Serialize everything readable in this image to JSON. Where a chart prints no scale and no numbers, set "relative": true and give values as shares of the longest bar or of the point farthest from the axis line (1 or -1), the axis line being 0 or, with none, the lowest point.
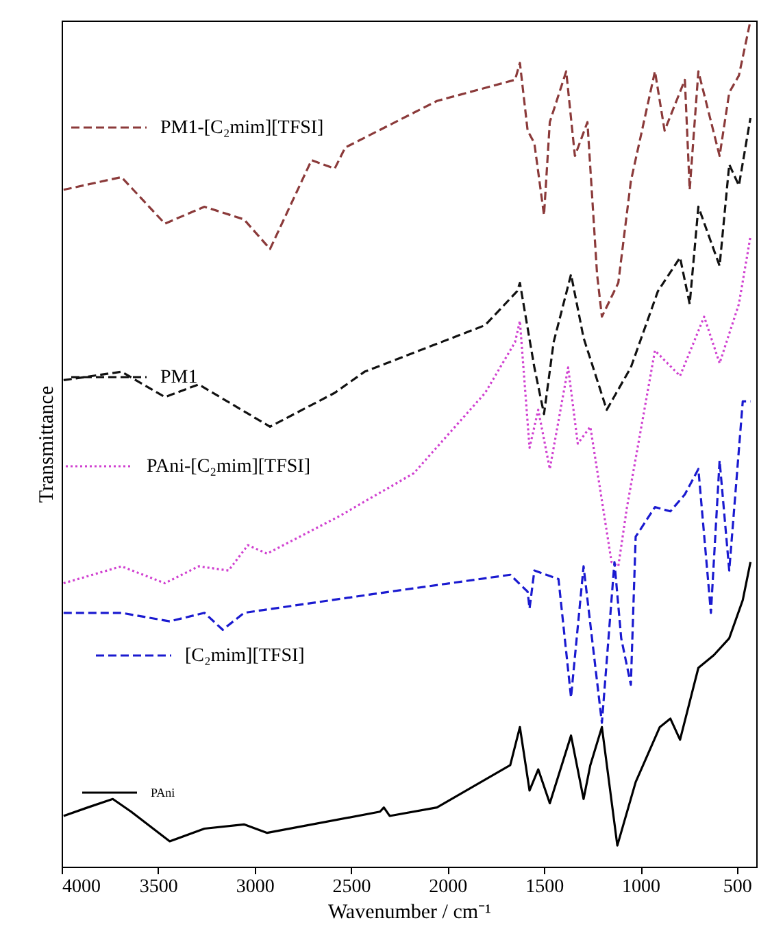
{
  "chart_data": {
    "type": "line",
    "relative": true,
    "xlabel": "Wavenumber / cm⁻¹",
    "ylabel": "Transmittance",
    "xlim": [
      4000,
      400
    ],
    "xticks": [
      4000,
      3500,
      3000,
      2500,
      2000,
      1500,
      1000,
      500
    ],
    "tick_labels": "x",
    "grid": false,
    "marker": "none",
    "legend": "left",
    "series": [
      {
        "name": "PM1-[C₂mim][TFSI]",
        "color": "#8b3a3a",
        "line_style": "dashed",
        "x": [
          3990,
          3690,
          3465,
          3260,
          3055,
          2920,
          2705,
          2585,
          2530,
          2055,
          1650,
          1625,
          1585,
          1550,
          1500,
          1470,
          1385,
          1340,
          1275,
          1225,
          1200,
          1115,
          1050,
          925,
          875,
          770,
          745,
          700,
          590,
          540,
          490,
          430
        ],
        "values": [
          0.8,
          0.815,
          0.76,
          0.78,
          0.765,
          0.73,
          0.835,
          0.825,
          0.85,
          0.905,
          0.93,
          0.95,
          0.87,
          0.855,
          0.77,
          0.88,
          0.94,
          0.84,
          0.88,
          0.7,
          0.65,
          0.69,
          0.81,
          0.94,
          0.87,
          0.93,
          0.8,
          0.94,
          0.84,
          0.915,
          0.935,
          1.0
        ]
      },
      {
        "name": "PM1",
        "color": "#111111",
        "line_style": "dashed",
        "x": [
          3990,
          3690,
          3465,
          3290,
          2920,
          2585,
          2430,
          1805,
          1640,
          1625,
          1550,
          1500,
          1450,
          1360,
          1295,
          1175,
          1050,
          910,
          795,
          745,
          700,
          590,
          540,
          490,
          430
        ],
        "values": [
          0.575,
          0.585,
          0.555,
          0.57,
          0.52,
          0.56,
          0.585,
          0.64,
          0.68,
          0.69,
          0.59,
          0.535,
          0.62,
          0.7,
          0.625,
          0.54,
          0.59,
          0.68,
          0.72,
          0.665,
          0.78,
          0.71,
          0.83,
          0.805,
          0.885
        ]
      },
      {
        "name": "PAni-[C₂mim][TFSI]",
        "color": "#d040d0",
        "line_style": "dotted",
        "x": [
          3990,
          3690,
          3465,
          3290,
          3135,
          3035,
          2935,
          2555,
          2175,
          1805,
          1650,
          1625,
          1575,
          1530,
          1470,
          1375,
          1325,
          1260,
          1150,
          1115,
          1070,
          925,
          795,
          670,
          590,
          490,
          430
        ],
        "values": [
          0.335,
          0.355,
          0.335,
          0.355,
          0.35,
          0.38,
          0.37,
          0.415,
          0.465,
          0.56,
          0.62,
          0.645,
          0.495,
          0.54,
          0.47,
          0.59,
          0.5,
          0.52,
          0.36,
          0.355,
          0.425,
          0.61,
          0.58,
          0.65,
          0.595,
          0.665,
          0.745
        ]
      },
      {
        "name": "[C₂mim][TFSI]",
        "color": "#1a1ad0",
        "line_style": "dashed",
        "x": [
          3990,
          3690,
          3440,
          3260,
          3165,
          3055,
          2300,
          1675,
          1585,
          1575,
          1550,
          1425,
          1360,
          1295,
          1200,
          1135,
          1100,
          1050,
          1025,
          925,
          845,
          770,
          700,
          635,
          590,
          540,
          470,
          430
        ],
        "values": [
          0.3,
          0.3,
          0.29,
          0.3,
          0.28,
          0.3,
          0.325,
          0.345,
          0.325,
          0.305,
          0.35,
          0.34,
          0.2,
          0.355,
          0.17,
          0.36,
          0.27,
          0.215,
          0.39,
          0.425,
          0.42,
          0.44,
          0.47,
          0.3,
          0.48,
          0.35,
          0.55,
          0.55
        ]
      },
      {
        "name": "PAni",
        "color": "#000000",
        "line_style": "solid",
        "x": [
          3990,
          3865,
          3735,
          3640,
          3440,
          3260,
          3055,
          2935,
          2350,
          2330,
          2300,
          2055,
          1675,
          1625,
          1575,
          1530,
          1470,
          1360,
          1295,
          1260,
          1200,
          1120,
          1025,
          900,
          845,
          795,
          700,
          620,
          540,
          470,
          430
        ],
        "values": [
          0.06,
          0.07,
          0.08,
          0.065,
          0.03,
          0.045,
          0.05,
          0.04,
          0.065,
          0.07,
          0.06,
          0.07,
          0.12,
          0.165,
          0.09,
          0.115,
          0.075,
          0.155,
          0.08,
          0.12,
          0.165,
          0.025,
          0.1,
          0.165,
          0.175,
          0.15,
          0.235,
          0.25,
          0.27,
          0.315,
          0.36
        ]
      }
    ]
  }
}
